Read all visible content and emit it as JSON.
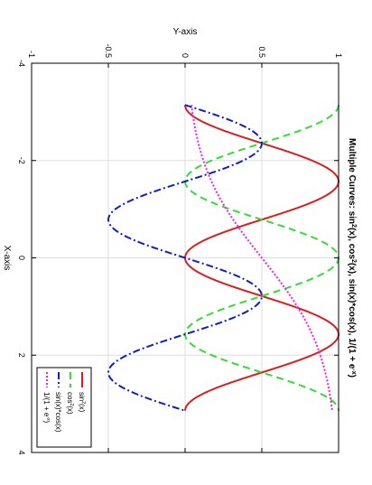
{
  "chart_data": {
    "type": "line",
    "title_parts": [
      {
        "t": "Multiple Curves: sin"
      },
      {
        "t": "2",
        "sup": true
      },
      {
        "t": "(x), cos"
      },
      {
        "t": "2",
        "sup": true
      },
      {
        "t": "(x), sin(x)*cos(x), 1/(1 + e"
      },
      {
        "t": "-x",
        "sup": true
      },
      {
        "t": ")"
      }
    ],
    "xlabel": "X-axis",
    "ylabel": "Y-axis",
    "xlim": [
      -4,
      4
    ],
    "ylim": [
      -1,
      1
    ],
    "xticks": [
      -4,
      -2,
      0,
      2,
      4
    ],
    "yticks": [
      -1,
      -0.5,
      0,
      0.5,
      1
    ],
    "xtick_labels": [
      "-4",
      "-2",
      "0",
      "2",
      "4"
    ],
    "ytick_labels": [
      "-1",
      "-0.5",
      "0",
      "0.5",
      "1"
    ],
    "grid": true,
    "legend_position": "bottom-right",
    "x_range_sampled": [
      -3.14159,
      3.14159
    ],
    "series": [
      {
        "key": "sin2",
        "parts": [
          {
            "t": "sin"
          },
          {
            "t": "2",
            "sup": true
          },
          {
            "t": "(x)"
          }
        ],
        "color": "#d62020",
        "dash": "",
        "width": 2,
        "x": [
          -3.1416,
          -2.7489,
          -2.3562,
          -1.9635,
          -1.5708,
          -1.1781,
          -0.7854,
          -0.3927,
          0,
          0.3927,
          0.7854,
          1.1781,
          1.5708,
          1.9635,
          2.3562,
          2.7489,
          3.1416
        ],
        "y": [
          0,
          0.1464,
          0.5,
          0.8536,
          1,
          0.8536,
          0.5,
          0.1464,
          0,
          0.1464,
          0.5,
          0.8536,
          1,
          0.8536,
          0.5,
          0.1464,
          0
        ]
      },
      {
        "key": "cos2",
        "parts": [
          {
            "t": "cos"
          },
          {
            "t": "2",
            "sup": true
          },
          {
            "t": "(x)"
          }
        ],
        "color": "#33dd33",
        "dash": "8,5",
        "width": 2,
        "x": [
          -3.1416,
          -2.7489,
          -2.3562,
          -1.9635,
          -1.5708,
          -1.1781,
          -0.7854,
          -0.3927,
          0,
          0.3927,
          0.7854,
          1.1781,
          1.5708,
          1.9635,
          2.3562,
          2.7489,
          3.1416
        ],
        "y": [
          1,
          0.8536,
          0.5,
          0.1464,
          0,
          0.1464,
          0.5,
          0.8536,
          1,
          0.8536,
          0.5,
          0.1464,
          0,
          0.1464,
          0.5,
          0.8536,
          1
        ]
      },
      {
        "key": "sincos",
        "parts": [
          {
            "t": "sin(x)*cos(x)"
          }
        ],
        "color": "#1020c0",
        "dash": "8,3,2,3",
        "width": 2,
        "x": [
          -3.1416,
          -2.7489,
          -2.3562,
          -1.9635,
          -1.5708,
          -1.1781,
          -0.7854,
          -0.3927,
          0,
          0.3927,
          0.7854,
          1.1781,
          1.5708,
          1.9635,
          2.3562,
          2.7489,
          3.1416
        ],
        "y": [
          0,
          0.3536,
          0.5,
          0.3536,
          0,
          -0.3536,
          -0.5,
          -0.3536,
          0,
          0.3536,
          0.5,
          0.3536,
          0,
          -0.3536,
          -0.5,
          -0.3536,
          0
        ]
      },
      {
        "key": "logistic",
        "parts": [
          {
            "t": "1/(1 + e"
          },
          {
            "t": "-x",
            "sup": true
          },
          {
            "t": ")"
          }
        ],
        "color": "#ee22ee",
        "dash": "2,2",
        "width": 2,
        "x": [
          -3.1416,
          -2.7489,
          -2.3562,
          -1.9635,
          -1.5708,
          -1.1781,
          -0.7854,
          -0.3927,
          0,
          0.3927,
          0.7854,
          1.1781,
          1.5708,
          1.9635,
          2.3562,
          2.7489,
          3.1416
        ],
        "y": [
          0.0414,
          0.0601,
          0.0866,
          0.1231,
          0.1721,
          0.2354,
          0.3132,
          0.4031,
          0.5,
          0.5969,
          0.6868,
          0.7646,
          0.8279,
          0.8769,
          0.9134,
          0.9399,
          0.9586
        ]
      }
    ]
  }
}
